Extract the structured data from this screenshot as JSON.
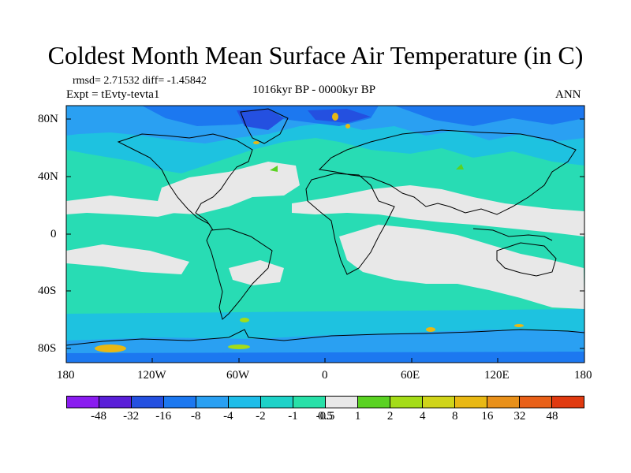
{
  "title": "Coldest Month Mean Surface Air Temperature (in C)",
  "rmsd_line": "rmsd= 2.71532 diff= -1.45842",
  "expt_line": "Expt = tEvty-tevta1",
  "period": "1016kyr BP - 0000kyr BP",
  "season": "ANN",
  "lat_ticks": [
    "80N",
    "40N",
    "0",
    "40S",
    "80S"
  ],
  "lon_ticks": [
    "180",
    "120W",
    "60W",
    "0",
    "60E",
    "120E",
    "180"
  ],
  "colorbar": {
    "colors": [
      "#8a1cf0",
      "#5a1fd8",
      "#2450e0",
      "#1c78f0",
      "#2aa0f2",
      "#1fbde8",
      "#1ed2c8",
      "#28e0a8",
      "#e8e8e8",
      "#5ad222",
      "#a4dc18",
      "#d0d41a",
      "#e8b814",
      "#e8901a",
      "#e86018",
      "#e03a10"
    ],
    "labels": [
      "-48",
      "-32",
      "-16",
      "-8",
      "-4",
      "-2",
      "-1",
      "-0.5",
      "0.5",
      "1",
      "2",
      "4",
      "8",
      "16",
      "32",
      "48"
    ]
  },
  "map_palette": {
    "ocean": "#28dcb4",
    "neutral": "#e8e8e8",
    "cool1": "#1ec2e0",
    "cool2": "#2aa0f2",
    "cool3": "#1c78f0",
    "cool4": "#2450e0",
    "warm": "#a4dc18",
    "hot": "#e8b814"
  }
}
